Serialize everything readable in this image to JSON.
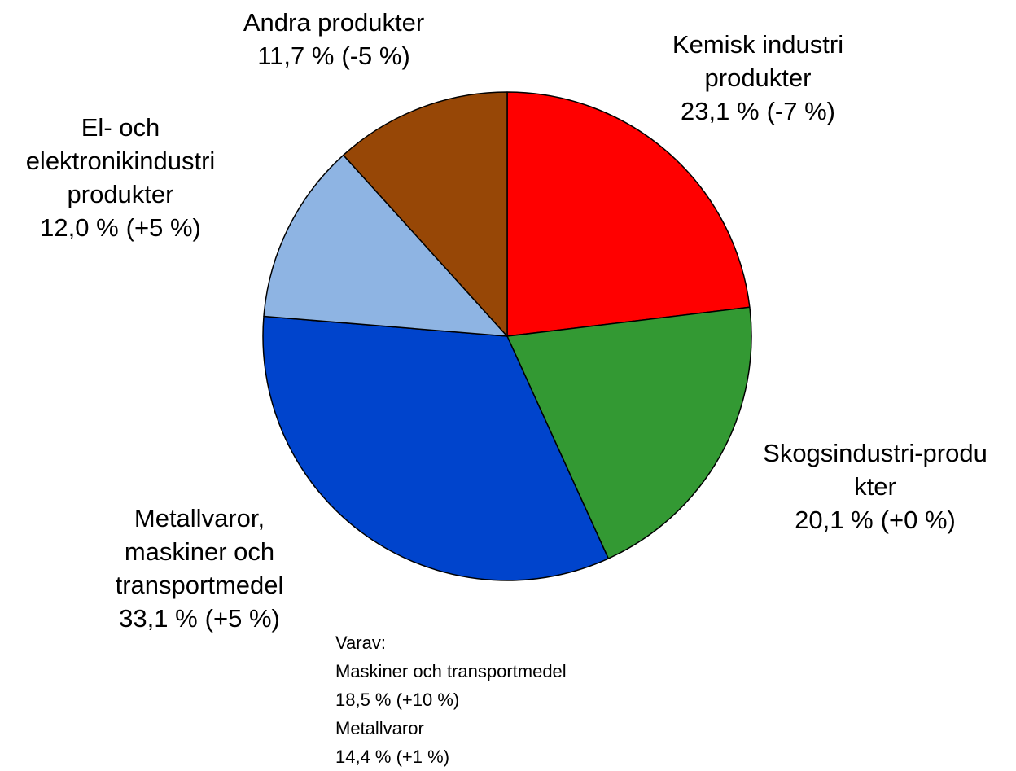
{
  "chart_data": {
    "type": "pie",
    "categories": [
      "Kemisk industri produkter",
      "Skogsindustri-produkter",
      "Metallvaror, maskiner och transportmedel",
      "El- och elektronikindustri produkter",
      "Andra produkter"
    ],
    "values": [
      23.1,
      20.1,
      33.1,
      12.0,
      11.7
    ],
    "value_labels": [
      "23,1 %",
      "20,1 %",
      "33,1 %",
      "12,0 %",
      "11,7 %"
    ],
    "change_labels": [
      "(-7 %)",
      "(+0 %)",
      "(+5 %)",
      "(+5 %)",
      "(-5 %)"
    ],
    "colors": [
      "#ff0000",
      "#339933",
      "#0044cc",
      "#8eb4e3",
      "#974706"
    ],
    "annotation": {
      "title": "Varav:",
      "items": [
        {
          "name": "Maskiner och transportmedel",
          "label": "18,5 % (+10 %)"
        },
        {
          "name": "Metallvaror",
          "label": "14,4 % (+1 %)"
        }
      ]
    }
  }
}
